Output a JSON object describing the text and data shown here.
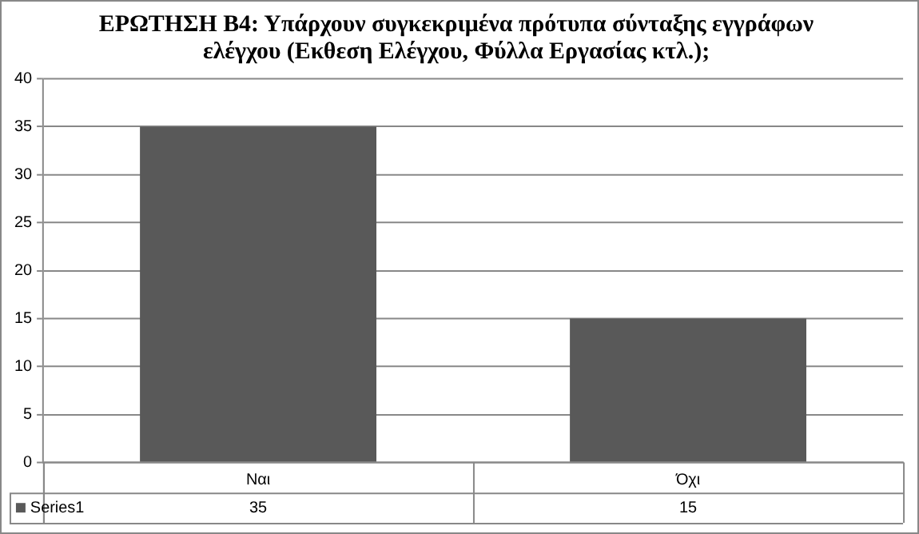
{
  "chart_data": {
    "type": "bar",
    "title": "ΕΡΩΤΗΣΗ Β4: Υπάρχουν συγκεκριμένα πρότυπα σύνταξης εγγράφων ελέγχου (Εκθεση Ελέγχου, Φύλλα Εργασίας κτλ.);",
    "categories": [
      "Ναι",
      "Όχι"
    ],
    "series": [
      {
        "name": "Series1",
        "color": "#595959",
        "values": [
          35,
          15
        ]
      }
    ],
    "ylim": [
      0,
      40
    ],
    "yticks": [
      0,
      5,
      10,
      15,
      20,
      25,
      30,
      35,
      40
    ],
    "grid": "y",
    "legend": "bottom",
    "data_labels": true
  }
}
